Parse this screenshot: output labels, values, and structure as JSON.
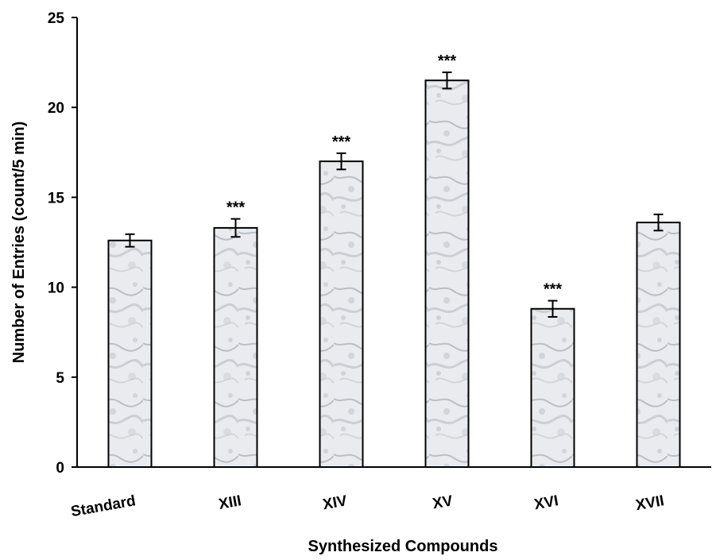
{
  "chart_data": {
    "type": "bar",
    "title": "",
    "xlabel": "Synthesized Compounds",
    "ylabel": "Number of Entries (count/5 min)",
    "ylim": [
      0,
      25
    ],
    "yticks": [
      0,
      5,
      10,
      15,
      20,
      25
    ],
    "grid": false,
    "categories": [
      "Standard",
      "XIII",
      "XIV",
      "XV",
      "XVI",
      "XVII"
    ],
    "values": [
      12.6,
      13.3,
      17.0,
      21.5,
      8.8,
      13.6
    ],
    "errors": [
      0.35,
      0.5,
      0.45,
      0.45,
      0.45,
      0.45
    ],
    "annotations": [
      "",
      "***",
      "***",
      "***",
      "***",
      ""
    ],
    "bar_fill": "marble-texture"
  },
  "colors": {
    "bar_base": "#e9ebee",
    "bar_vein": "#a9adb4",
    "outline": "#000000"
  }
}
